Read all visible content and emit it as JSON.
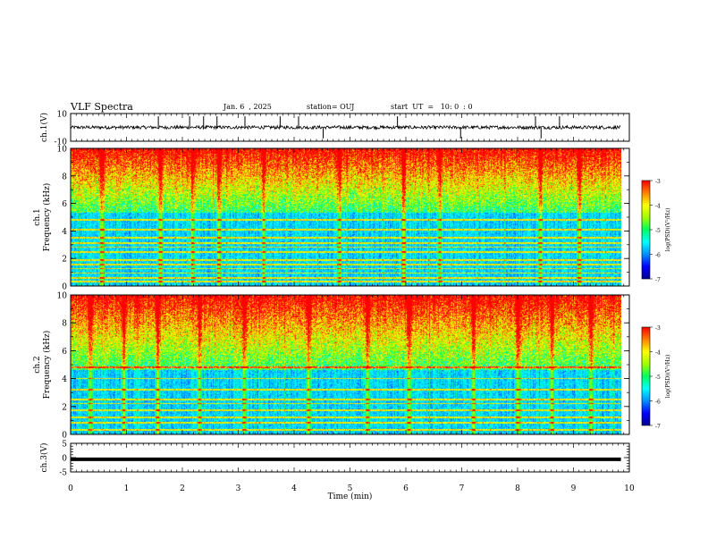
{
  "header": {
    "title": "VLF Spectra",
    "date": "Jan. 6  , 2025",
    "station": "station= OUJ",
    "start_ut": "start  UT  =   10: 0  : 0"
  },
  "colors": {
    "colormap": [
      "#000090",
      "#0000ff",
      "#0090ff",
      "#00ffff",
      "#00ff60",
      "#a0ff00",
      "#ffff00",
      "#ff8000",
      "#ff0000"
    ],
    "trace": "#000000",
    "axis": "#000000"
  },
  "chart_data": [
    {
      "type": "line",
      "panel": "ch1-waveform",
      "ylabel": "ch.1(V)",
      "ylim": [
        -10,
        10
      ],
      "yticks": [
        "10",
        "-10"
      ],
      "xlim": [
        0,
        10
      ],
      "baseline": 0,
      "noise_amplitude": 1.2,
      "spikes_min": [
        1.57,
        2.13,
        2.38,
        2.62,
        3.12,
        3.75,
        4.08,
        4.52,
        5.85,
        6.98,
        8.32,
        8.42,
        8.75
      ]
    },
    {
      "type": "heatmap",
      "panel": "ch1-spectrogram",
      "ylabel": "ch.1",
      "ylabel2": "Frequency (kHz)",
      "ylim": [
        0,
        10
      ],
      "yticks": [
        "0",
        "2",
        "4",
        "6",
        "8",
        "10"
      ],
      "xlim": [
        0,
        10
      ],
      "data_end_min": 9.85,
      "colorbar": {
        "label": "log(PSD)(V²/Hz)",
        "range": [
          -7,
          -3
        ],
        "ticks": [
          "-3",
          "-4",
          "-5",
          "-6",
          "-7"
        ]
      },
      "noise_floor_top_khz": 5.3,
      "spectral_lines_khz": [
        0.3,
        0.55,
        0.9,
        1.25,
        1.55,
        1.85,
        2.45,
        2.8,
        3.1,
        3.5,
        4.1,
        4.8
      ],
      "broadband_bursts_min": [
        0.55,
        1.6,
        2.18,
        2.65,
        3.45,
        4.8,
        5.95,
        6.6,
        8.4,
        9.1
      ]
    },
    {
      "type": "heatmap",
      "panel": "ch2-spectrogram",
      "ylabel": "ch.2",
      "ylabel2": "Frequency (kHz)",
      "ylim": [
        0,
        10
      ],
      "yticks": [
        "0",
        "2",
        "4",
        "6",
        "8",
        "10"
      ],
      "xlim": [
        0,
        10
      ],
      "data_end_min": 9.85,
      "colorbar": {
        "label": "log(PSD)(V²/Hz)",
        "range": [
          -7,
          -3
        ],
        "ticks": [
          "-3",
          "-4",
          "-5",
          "-6",
          "-7"
        ]
      },
      "noise_floor_top_khz": 4.6,
      "spectral_lines_khz": [
        0.3,
        0.8,
        1.2,
        1.7,
        2.2,
        2.5,
        3.2,
        4.0,
        4.8
      ],
      "broadband_bursts_min": [
        0.35,
        0.95,
        1.55,
        2.3,
        3.1,
        4.25,
        5.3,
        6.05,
        7.2,
        8.0,
        8.6,
        9.3
      ]
    },
    {
      "type": "line",
      "panel": "ch3-waveform",
      "ylabel": "ch.3(V)",
      "xlabel": "Time  (min)",
      "ylim": [
        -5,
        5
      ],
      "yticks": [
        "5",
        "0",
        "-5"
      ],
      "xlim": [
        0,
        10
      ],
      "xticks": [
        "0",
        "1",
        "2",
        "3",
        "4",
        "5",
        "6",
        "7",
        "8",
        "9",
        "10"
      ],
      "level": -0.6,
      "data_end_min": 9.85
    }
  ]
}
